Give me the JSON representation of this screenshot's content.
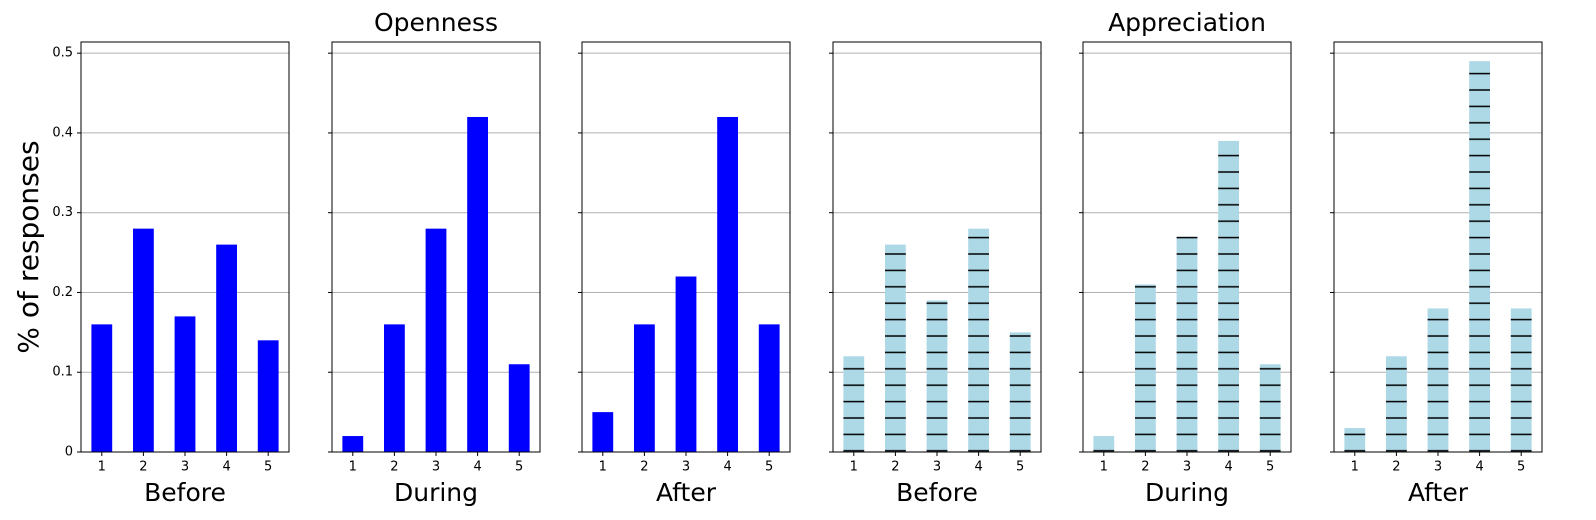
{
  "chart_data": [
    {
      "type": "bar",
      "xlabel": "Before",
      "ylabel": "% of responses",
      "categories": [
        "1",
        "2",
        "3",
        "4",
        "5"
      ],
      "values": [
        0.16,
        0.28,
        0.17,
        0.26,
        0.14
      ],
      "color": "#0000ff",
      "ylim": [
        0,
        0.514
      ],
      "yticks": [
        0.0,
        0.1,
        0.2,
        0.3,
        0.4,
        0.5
      ],
      "grid": true
    },
    {
      "type": "bar",
      "title": "Openness",
      "xlabel": "During",
      "categories": [
        "1",
        "2",
        "3",
        "4",
        "5"
      ],
      "values": [
        0.02,
        0.16,
        0.28,
        0.42,
        0.11
      ],
      "color": "#0000ff"
    },
    {
      "type": "bar",
      "xlabel": "After",
      "categories": [
        "1",
        "2",
        "3",
        "4",
        "5"
      ],
      "values": [
        0.05,
        0.16,
        0.22,
        0.42,
        0.16
      ],
      "color": "#0000ff"
    },
    {
      "type": "bar",
      "xlabel": "Before",
      "categories": [
        "1",
        "2",
        "3",
        "4",
        "5"
      ],
      "values": [
        0.12,
        0.26,
        0.19,
        0.28,
        0.15
      ],
      "color": "#add8e6",
      "hatch": "-"
    },
    {
      "type": "bar",
      "title": "Appreciation",
      "xlabel": "During",
      "categories": [
        "1",
        "2",
        "3",
        "4",
        "5"
      ],
      "values": [
        0.02,
        0.21,
        0.27,
        0.39,
        0.11
      ],
      "color": "#add8e6",
      "hatch": "-"
    },
    {
      "type": "bar",
      "xlabel": "After",
      "categories": [
        "1",
        "2",
        "3",
        "4",
        "5"
      ],
      "values": [
        0.03,
        0.12,
        0.18,
        0.49,
        0.18
      ],
      "color": "#add8e6",
      "hatch": "-"
    }
  ]
}
